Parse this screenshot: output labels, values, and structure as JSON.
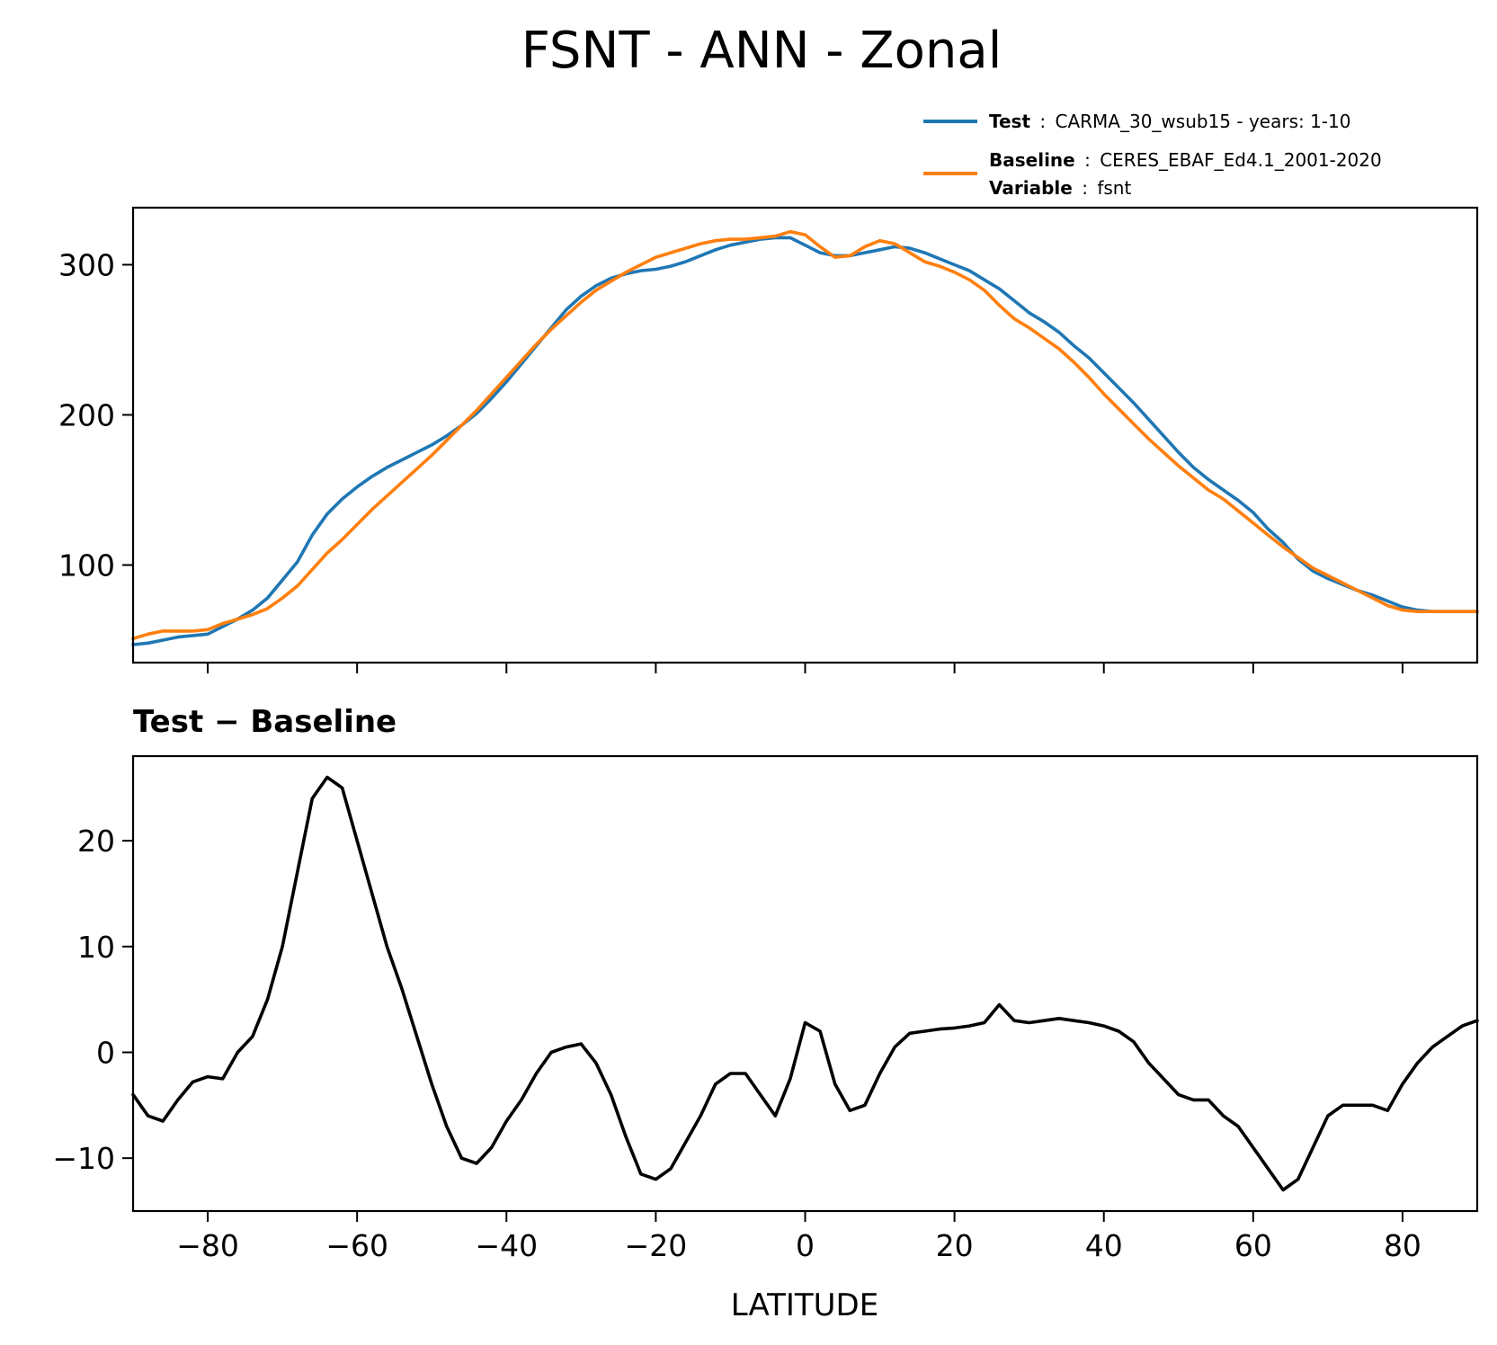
{
  "figure": {
    "title": "FSNT - ANN - Zonal"
  },
  "legend": {
    "test_key": "Test",
    "test_value": "CARMA_30_wsub15 - years: 1-10",
    "baseline_key": "Baseline",
    "baseline_value": "CERES_EBAF_Ed4.1_2001-2020",
    "variable_key": "Variable",
    "variable_value": "fsnt"
  },
  "chart_data": [
    {
      "type": "line",
      "title": "",
      "xlabel": "",
      "ylabel": "",
      "xlim": [
        -90,
        90
      ],
      "ylim": [
        35,
        338
      ],
      "xticks": [
        -80,
        -60,
        -40,
        -20,
        0,
        20,
        40,
        60,
        80
      ],
      "yticks": [
        100,
        200,
        300
      ],
      "ytick_labels": [
        "100",
        "200",
        "300"
      ],
      "grid": false,
      "legend_position": "above-right",
      "x": [
        -90,
        -88,
        -86,
        -84,
        -82,
        -80,
        -78,
        -76,
        -74,
        -72,
        -70,
        -68,
        -66,
        -64,
        -62,
        -60,
        -58,
        -56,
        -54,
        -52,
        -50,
        -48,
        -46,
        -44,
        -42,
        -40,
        -38,
        -36,
        -34,
        -32,
        -30,
        -28,
        -26,
        -24,
        -22,
        -20,
        -18,
        -16,
        -14,
        -12,
        -10,
        -8,
        -6,
        -4,
        -2,
        0,
        2,
        4,
        6,
        8,
        10,
        12,
        14,
        16,
        18,
        20,
        22,
        24,
        26,
        28,
        30,
        32,
        34,
        36,
        38,
        40,
        42,
        44,
        46,
        48,
        50,
        52,
        54,
        56,
        58,
        60,
        62,
        64,
        66,
        68,
        70,
        72,
        74,
        76,
        78,
        80,
        82,
        84,
        86,
        88,
        90
      ],
      "series": [
        {
          "name": "Test",
          "color": "#1f77b4",
          "values": [
            47,
            48,
            50,
            52,
            53,
            54,
            59,
            64,
            70,
            78,
            90,
            102,
            120,
            134,
            144,
            152,
            159,
            165,
            170,
            175,
            180,
            186,
            193,
            201,
            211,
            222,
            234,
            246,
            258,
            270,
            279,
            286,
            291,
            294,
            296,
            297,
            299,
            302,
            306,
            310,
            313,
            315,
            317,
            318,
            318,
            313,
            308,
            306,
            306,
            308,
            310,
            312,
            311,
            308,
            304,
            300,
            296,
            290,
            284,
            276,
            268,
            262,
            255,
            246,
            238,
            228,
            218,
            208,
            197,
            186,
            175,
            165,
            157,
            150,
            143,
            135,
            124,
            115,
            104,
            96,
            91,
            87,
            83,
            80,
            76,
            72,
            70,
            69,
            69,
            69,
            69
          ],
          "draw_order": 1
        },
        {
          "name": "Baseline",
          "color": "#ff7f0e",
          "values": [
            51,
            54,
            56,
            56,
            56,
            57,
            61,
            64,
            67,
            71,
            78,
            86,
            97,
            108,
            117,
            127,
            137,
            146,
            155,
            164,
            173,
            183,
            193,
            203,
            214,
            225,
            236,
            247,
            257,
            266,
            275,
            283,
            289,
            295,
            300,
            305,
            308,
            311,
            314,
            316,
            317,
            317,
            318,
            319,
            322,
            320,
            312,
            305,
            306,
            312,
            316,
            314,
            308,
            302,
            299,
            295,
            290,
            283,
            273,
            264,
            258,
            251,
            244,
            235,
            225,
            214,
            204,
            194,
            184,
            175,
            166,
            158,
            150,
            144,
            136,
            128,
            120,
            112,
            105,
            98,
            93,
            88,
            83,
            78,
            73,
            70,
            69,
            69,
            69,
            69,
            69
          ],
          "draw_order": 2
        }
      ]
    },
    {
      "type": "line",
      "title": "Test − Baseline",
      "xlabel": "LATITUDE",
      "ylabel": "",
      "xlim": [
        -90,
        90
      ],
      "ylim": [
        -15,
        28
      ],
      "xticks": [
        -80,
        -60,
        -40,
        -20,
        0,
        20,
        40,
        60,
        80
      ],
      "xtick_labels": [
        "−80",
        "−60",
        "−40",
        "−20",
        "0",
        "20",
        "40",
        "60",
        "80"
      ],
      "yticks": [
        -10,
        0,
        10,
        20
      ],
      "ytick_labels": [
        "−10",
        "0",
        "10",
        "20"
      ],
      "grid": false,
      "x": [
        -90,
        -88,
        -86,
        -84,
        -82,
        -80,
        -78,
        -76,
        -74,
        -72,
        -70,
        -68,
        -66,
        -64,
        -62,
        -60,
        -58,
        -56,
        -54,
        -52,
        -50,
        -48,
        -46,
        -44,
        -42,
        -40,
        -38,
        -36,
        -34,
        -32,
        -30,
        -28,
        -26,
        -24,
        -22,
        -20,
        -18,
        -16,
        -14,
        -12,
        -10,
        -8,
        -6,
        -4,
        -2,
        0,
        2,
        4,
        6,
        8,
        10,
        12,
        14,
        16,
        18,
        20,
        22,
        24,
        26,
        28,
        30,
        32,
        34,
        36,
        38,
        40,
        42,
        44,
        46,
        48,
        50,
        52,
        54,
        56,
        58,
        60,
        62,
        64,
        66,
        68,
        70,
        72,
        74,
        76,
        78,
        80,
        82,
        84,
        86,
        88,
        90
      ],
      "series": [
        {
          "color": "#000000",
          "values": [
            -4,
            -6,
            -6.5,
            -4.5,
            -2.8,
            -2.3,
            -2.5,
            0,
            1.5,
            5,
            10,
            17,
            24,
            26,
            25,
            20,
            15,
            10,
            6,
            1.5,
            -3,
            -7,
            -10,
            -10.5,
            -9,
            -6.5,
            -4.5,
            -2,
            0,
            0.5,
            0.8,
            -1,
            -4,
            -8,
            -11.5,
            -12,
            -11,
            -8.5,
            -6,
            -3,
            -2,
            -2,
            -4,
            -6,
            -2.5,
            2.8,
            2,
            -3,
            -5.5,
            -5,
            -2,
            0.5,
            1.8,
            2,
            2.2,
            2.3,
            2.5,
            2.8,
            4.5,
            3,
            2.8,
            3,
            3.2,
            3,
            2.8,
            2.5,
            2,
            1,
            -1,
            -2.5,
            -4,
            -4.5,
            -4.5,
            -6,
            -7,
            -9,
            -11,
            -13,
            -12,
            -9,
            -6,
            -5,
            -5,
            -5,
            -5.5,
            -3,
            -1,
            0.5,
            1.5,
            2.5,
            3
          ]
        }
      ]
    }
  ]
}
